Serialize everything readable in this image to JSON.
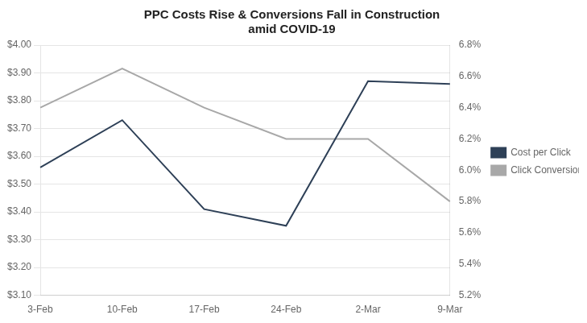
{
  "chart_data": {
    "type": "line",
    "title": "PPC Costs Rise & Conversions Fall in Construction\namid COVID-19",
    "categories": [
      "3-Feb",
      "10-Feb",
      "17-Feb",
      "24-Feb",
      "2-Mar",
      "9-Mar"
    ],
    "series": [
      {
        "name": "Cost per Click",
        "color": "#2E4057",
        "values": [
          3.56,
          3.73,
          3.41,
          3.35,
          3.87,
          3.86
        ]
      },
      {
        "name": "Click Conversion Rate",
        "color": "#A8A8A8",
        "values": [
          0.064,
          0.0665,
          0.064,
          0.062,
          0.062,
          0.058
        ],
        "axis": "y2"
      }
    ],
    "ylim": [
      3.1,
      4.0
    ],
    "yticks": [
      {
        "value": 3.1,
        "label": "$3.10"
      },
      {
        "value": 3.2,
        "label": "$3.20"
      },
      {
        "value": 3.3,
        "label": "$3.30"
      },
      {
        "value": 3.4,
        "label": "$3.40"
      },
      {
        "value": 3.5,
        "label": "$3.50"
      },
      {
        "value": 3.6,
        "label": "$3.60"
      },
      {
        "value": 3.7,
        "label": "$3.70"
      },
      {
        "value": 3.8,
        "label": "$3.80"
      },
      {
        "value": 3.9,
        "label": "$3.90"
      },
      {
        "value": 4.0,
        "label": "$4.00"
      }
    ],
    "y2lim": [
      0.052,
      0.068
    ],
    "y2ticks": [
      {
        "value": 0.052,
        "label": "5.2%"
      },
      {
        "value": 0.054,
        "label": "5.4%"
      },
      {
        "value": 0.056,
        "label": "5.6%"
      },
      {
        "value": 0.058,
        "label": "5.8%"
      },
      {
        "value": 0.06,
        "label": "6.0%"
      },
      {
        "value": 0.062,
        "label": "6.2%"
      },
      {
        "value": 0.064,
        "label": "6.4%"
      },
      {
        "value": 0.066,
        "label": "6.6%"
      },
      {
        "value": 0.068,
        "label": "6.8%"
      }
    ],
    "grid": true,
    "legend": "right",
    "marker": "none",
    "line_style": "solid"
  }
}
